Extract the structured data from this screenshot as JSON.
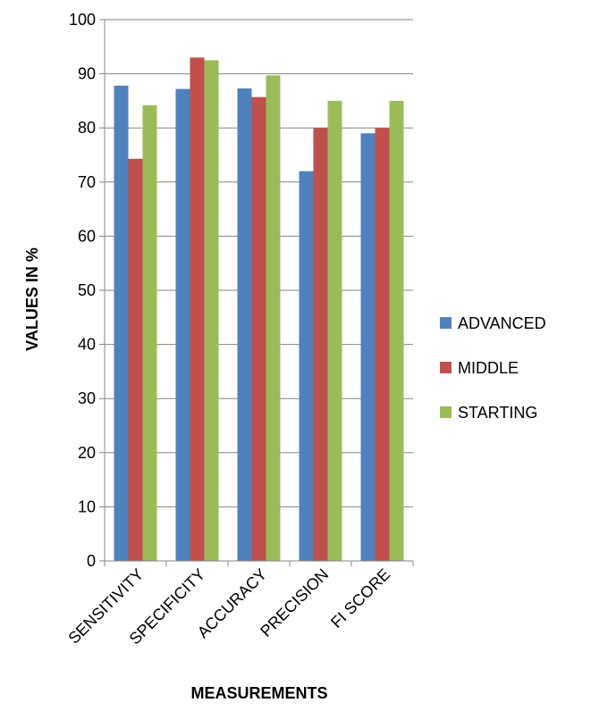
{
  "chart_data": {
    "type": "bar",
    "title": "",
    "xlabel": "MEASUREMENTS",
    "ylabel": "VALUES IN %",
    "ylim": [
      0,
      100
    ],
    "yticks": [
      0,
      10,
      20,
      30,
      40,
      50,
      60,
      70,
      80,
      90,
      100
    ],
    "grid": true,
    "legend_position": "right",
    "categories": [
      "SENSITIVITY",
      "SPECIFICITY",
      "ACCURACY",
      "PRECISION",
      "FI SCORE"
    ],
    "series": [
      {
        "name": "ADVANCED",
        "color": "#4f81bd",
        "values": [
          87.8,
          87.2,
          87.3,
          72.0,
          79.0
        ]
      },
      {
        "name": "MIDDLE",
        "color": "#c0504d",
        "values": [
          74.3,
          93.0,
          85.7,
          80.0,
          80.0
        ]
      },
      {
        "name": "STARTING",
        "color": "#9bbb59",
        "values": [
          84.2,
          92.5,
          89.7,
          85.0,
          85.0
        ]
      }
    ]
  }
}
